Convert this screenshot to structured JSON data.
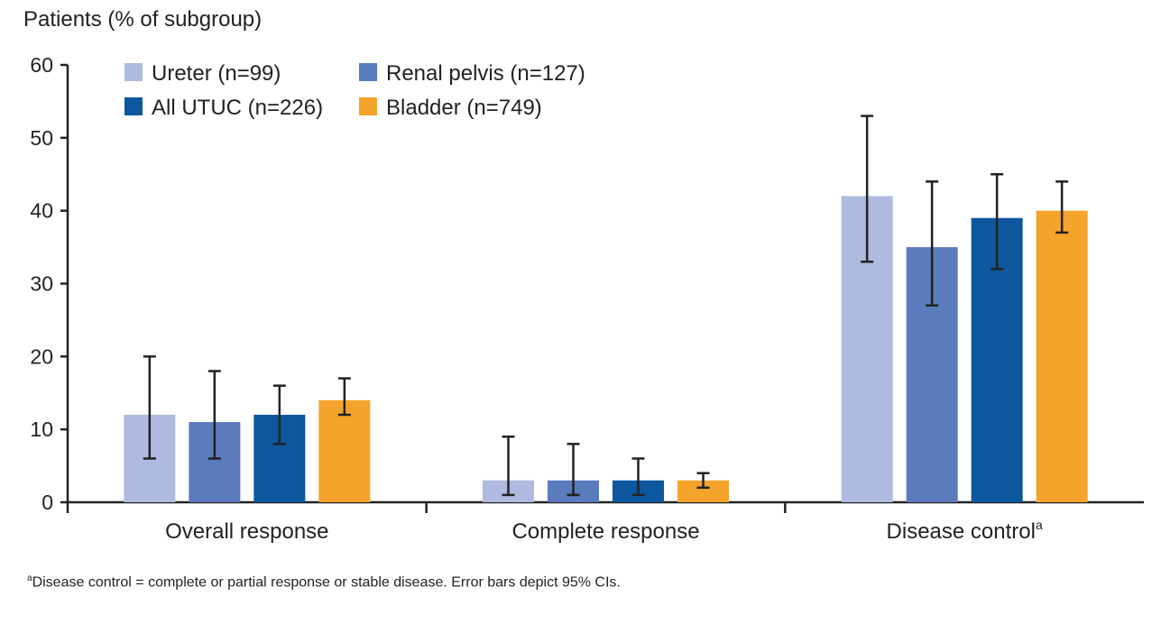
{
  "chart_data": {
    "type": "bar",
    "title": "",
    "ylabel": "Patients (% of subgroup)",
    "xlabel": "",
    "ylim": [
      0,
      60
    ],
    "yticks": [
      0,
      10,
      20,
      30,
      40,
      50,
      60
    ],
    "grid": false,
    "legend_position": "top-left",
    "categories": [
      "Overall response",
      "Complete response",
      "Disease control"
    ],
    "category_superscripts": [
      "",
      "",
      "a"
    ],
    "series": [
      {
        "name": "Ureter (n=99)",
        "color": "#aebadf",
        "values": [
          12,
          3,
          42
        ],
        "ci_low": [
          6,
          1,
          33
        ],
        "ci_high": [
          20,
          9,
          53
        ]
      },
      {
        "name": "Renal pelvis (n=127)",
        "color": "#5a7bbd",
        "values": [
          11,
          3,
          35
        ],
        "ci_low": [
          6,
          1,
          27
        ],
        "ci_high": [
          18,
          8,
          44
        ]
      },
      {
        "name": "All UTUC (n=226)",
        "color": "#0d579f",
        "values": [
          12,
          3,
          39
        ],
        "ci_low": [
          8,
          1,
          32
        ],
        "ci_high": [
          16,
          6,
          45
        ]
      },
      {
        "name": "Bladder (n=749)",
        "color": "#f4a42b",
        "values": [
          14,
          3,
          40
        ],
        "ci_low": [
          12,
          2,
          37
        ],
        "ci_high": [
          17,
          4,
          44
        ]
      }
    ]
  },
  "footnote": {
    "marker": "a",
    "text": "Disease control = complete or partial response or stable disease. Error bars depict 95% CIs."
  }
}
